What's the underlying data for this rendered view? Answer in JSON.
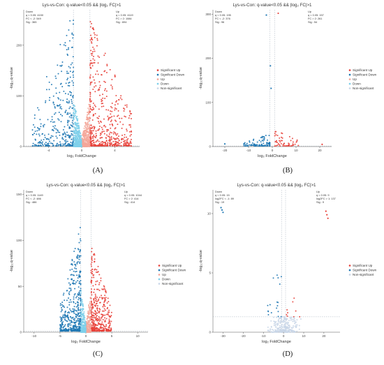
{
  "colors": {
    "sig_up": "#e8413a",
    "sig_down": "#1f78b4",
    "up": "#f4a79a",
    "down": "#7ecfea",
    "nonsig": "#c9d6e8",
    "threshold": "#9aa6b4"
  },
  "panels": [
    {
      "id": "A",
      "caption": "(A)",
      "chart_data": {
        "type": "scatter",
        "title": "Lys-vs-Con: q-value<0.05 && |log₂ FC|>1",
        "xlabel": "log₂ FoldChange",
        "ylabel": "-log₁₀q-value",
        "xlim": [
          -7,
          7
        ],
        "ylim": [
          0,
          270
        ],
        "xticks": [
          -4,
          0,
          4
        ],
        "yticks": [
          0,
          100,
          200
        ],
        "grid": false,
        "legend_position": "right",
        "legend": [
          "Significant Up",
          "Significant Down",
          "Up",
          "Down",
          "Non-significant"
        ],
        "down_stats": [
          "Down",
          "q < 0.05: 4150",
          "FC < -2: 549",
          "Sig : 365"
        ],
        "up_stats": [
          "Up",
          "q < 0.05: 4119",
          "FC > 2: 1084",
          "Sig : 694"
        ],
        "thresholds": {
          "x": [
            -1,
            1
          ],
          "y": 1.3
        },
        "series": [
          {
            "name": "Significant Up",
            "n": 694,
            "x_range": [
              1,
              6
            ],
            "y_max": 255
          },
          {
            "name": "Significant Down",
            "n": 365,
            "x_range": [
              -6,
              -1
            ],
            "y_max": 265
          },
          {
            "name": "Up",
            "n": 420,
            "x_range": [
              0,
              1
            ],
            "y_max": 80
          },
          {
            "name": "Down",
            "n": 420,
            "x_range": [
              -1,
              0
            ],
            "y_max": 80
          }
        ]
      }
    },
    {
      "id": "B",
      "caption": "(B)",
      "chart_data": {
        "type": "scatter",
        "title": "Lys-vs-Con: q-value<0.05 && |log₂ FC|>1",
        "xlabel": "log₂ FoldChange",
        "ylabel": "-log₁₀q-value",
        "xlim": [
          -25,
          25
        ],
        "ylim": [
          0,
          310
        ],
        "xticks": [
          -20,
          -10,
          0,
          10,
          20
        ],
        "yticks": [
          0,
          100,
          200,
          300
        ],
        "grid": false,
        "legend_position": "right",
        "legend": [
          "Significant Up",
          "Significant Down",
          "Up",
          "Down",
          "Non-significant"
        ],
        "down_stats": [
          "Down",
          "q < 0.05: 195",
          "FC < -2: 376",
          "Sig : 96"
        ],
        "up_stats": [
          "Up",
          "q < 0.05: 157",
          "FC > 2: 261",
          "Sig : 54"
        ],
        "thresholds": {
          "x": [
            -1,
            1
          ],
          "y": 1.3
        },
        "outliers": [
          {
            "series": "Significant Down",
            "x": -2.5,
            "y": 298
          },
          {
            "series": "Significant Up",
            "x": 2.5,
            "y": 302
          },
          {
            "series": "Significant Down",
            "x": -0.8,
            "y": 183
          },
          {
            "series": "Significant Down",
            "x": -0.5,
            "y": 132
          },
          {
            "series": "Significant Up",
            "x": 21,
            "y": 5
          },
          {
            "series": "Significant Down",
            "x": -20,
            "y": 6
          }
        ],
        "series": [
          {
            "name": "Significant Up",
            "n": 54,
            "x_range": [
              1,
              12
            ],
            "y_max": 40
          },
          {
            "name": "Significant Down",
            "n": 96,
            "x_range": [
              -12,
              -1
            ],
            "y_max": 30
          }
        ]
      }
    },
    {
      "id": "C",
      "caption": "(C)",
      "chart_data": {
        "type": "scatter",
        "title": "Lys-vs-Con: q-value<0.05 && |log₂ FC|>1",
        "xlabel": "log₂ FoldChange",
        "ylabel": "-log₁₀q-value",
        "xlim": [
          -12,
          12
        ],
        "ylim": [
          0,
          155
        ],
        "xticks": [
          -10,
          -5,
          0,
          5,
          10
        ],
        "yticks": [
          0,
          50,
          100,
          150
        ],
        "grid": false,
        "legend_position": "right",
        "legend": [
          "Significant Up",
          "Significant Down",
          "Up",
          "Down",
          "Non-significant"
        ],
        "down_stats": [
          "Down",
          "q < 0.05: 1149",
          "FC < -2: 486",
          "Sig : 486"
        ],
        "up_stats": [
          "Up",
          "q < 0.05: 1044",
          "FC > 2: 414",
          "Sig : 414"
        ],
        "thresholds": {
          "x": [
            -1,
            1
          ],
          "y": 1.3
        },
        "series": [
          {
            "name": "Significant Up",
            "n": 414,
            "x_range": [
              1,
              5
            ],
            "y_max": 95
          },
          {
            "name": "Significant Down",
            "n": 486,
            "x_range": [
              -5,
              -1
            ],
            "y_max": 115
          },
          {
            "name": "Up",
            "n": 220,
            "x_range": [
              0,
              1
            ],
            "y_max": 40
          },
          {
            "name": "Down",
            "n": 220,
            "x_range": [
              -1,
              0
            ],
            "y_max": 40
          }
        ]
      }
    },
    {
      "id": "D",
      "caption": "(D)",
      "chart_data": {
        "type": "scatter",
        "title": "Lys-vs-Con: q-value<0.05 && |log₂ FC|>1",
        "xlabel": "log₂ FoldChange",
        "ylabel": "-log₁₀q-value",
        "xlim": [
          -35,
          28
        ],
        "ylim": [
          0,
          12
        ],
        "xticks": [
          -30,
          -20,
          -10,
          0,
          10,
          20
        ],
        "yticks": [
          0,
          5,
          10
        ],
        "grid": false,
        "legend_position": "right",
        "legend": [
          "Significant Up",
          "Significant Down",
          "Non-significant"
        ],
        "down_stats": [
          "Down",
          "q < 0.05: 15",
          "log2FC < -1: 89",
          "Sig : 19"
        ],
        "up_stats": [
          "Up",
          "q < 0.05: 9",
          "log2FC > 1: 137",
          "Sig : 9"
        ],
        "thresholds": {
          "x": [
            -1,
            1
          ],
          "y": 1.3
        },
        "outliers": [
          {
            "series": "Significant Down",
            "x": -31,
            "y": 10.5
          },
          {
            "series": "Significant Down",
            "x": -30.5,
            "y": 10.3
          },
          {
            "series": "Significant Down",
            "x": -30,
            "y": 10.1
          },
          {
            "series": "Significant Up",
            "x": 21,
            "y": 10.2
          },
          {
            "series": "Significant Up",
            "x": 21.5,
            "y": 9.9
          },
          {
            "series": "Significant Up",
            "x": 22,
            "y": 9.6
          }
        ],
        "series": [
          {
            "name": "Significant Up",
            "n": 9,
            "x_range": [
              1,
              8
            ],
            "y_max": 4
          },
          {
            "name": "Significant Down",
            "n": 19,
            "x_range": [
              -8,
              -1
            ],
            "y_max": 6
          },
          {
            "name": "Non-significant",
            "n": 260,
            "x_range": [
              -10,
              10
            ],
            "y_max": 1.3
          }
        ]
      }
    }
  ]
}
